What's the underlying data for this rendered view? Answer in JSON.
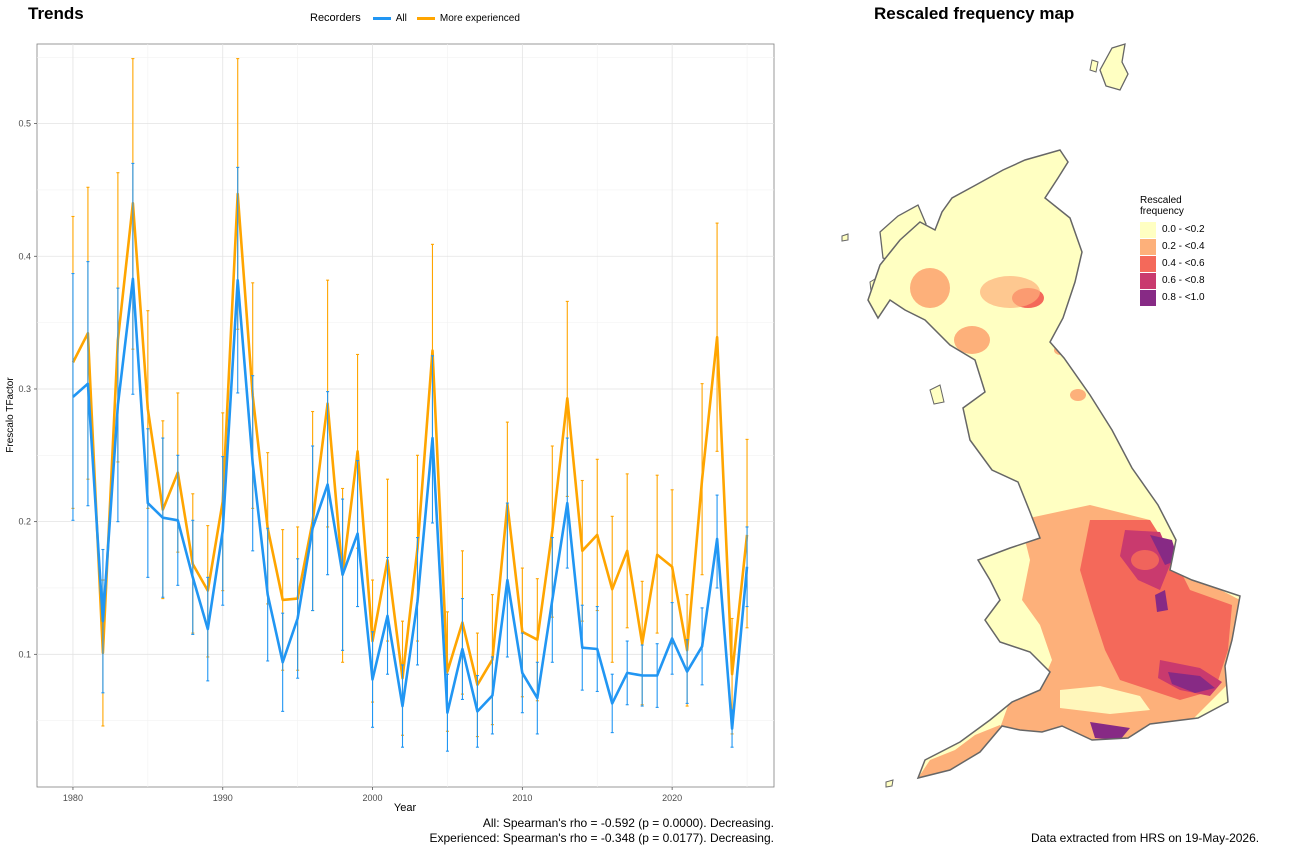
{
  "left_panel": {
    "title": "Trends"
  },
  "right_panel": {
    "title": "Rescaled frequency map"
  },
  "legend": {
    "title": "Recorders",
    "items": [
      {
        "label": "All",
        "color": "#2196F3"
      },
      {
        "label": "More experienced",
        "color": "#FFA500"
      }
    ]
  },
  "map_legend": {
    "title_line1": "Rescaled",
    "title_line2": "frequency",
    "items": [
      {
        "label": "0.0 - <0.2",
        "color": "#FFFFC2"
      },
      {
        "label": "0.2 - <0.4",
        "color": "#FDB07A"
      },
      {
        "label": "0.4 - <0.6",
        "color": "#F4695A"
      },
      {
        "label": "0.6 - <0.8",
        "color": "#C93A6E"
      },
      {
        "label": "0.8 - <1.0",
        "color": "#872A85"
      }
    ]
  },
  "stats": {
    "line1": "All: Spearman's rho = -0.592 (p = 0.0000). Decreasing.",
    "line2": "Experienced: Spearman's rho = -0.348 (p = 0.0177). Decreasing."
  },
  "footer": {
    "extracted": "Data extracted from HRS on 19-May-2026."
  },
  "chart_data": {
    "type": "line",
    "xlabel": "Year",
    "ylabel": "Frescalo TFactor",
    "xlim": [
      1977.6,
      2026.8
    ],
    "ylim": [
      0.0,
      0.56
    ],
    "xticks": [
      1980,
      1990,
      2000,
      2010,
      2020
    ],
    "yticks": [
      0.1,
      0.2,
      0.3,
      0.4,
      0.5
    ],
    "grid": true,
    "legend_position": "top",
    "series": [
      {
        "name": "All",
        "color": "#2196F3",
        "x": [
          1980,
          1981,
          1982,
          1983,
          1984,
          1985,
          1986,
          1987,
          1988,
          1989,
          1990,
          1991,
          1992,
          1993,
          1994,
          1995,
          1996,
          1997,
          1998,
          1999,
          2000,
          2001,
          2002,
          2003,
          2004,
          2005,
          2006,
          2007,
          2008,
          2009,
          2010,
          2011,
          2012,
          2013,
          2014,
          2015,
          2016,
          2017,
          2018,
          2019,
          2020,
          2021,
          2022,
          2023,
          2024,
          2025
        ],
        "y": [
          0.294,
          0.304,
          0.125,
          0.288,
          0.383,
          0.214,
          0.203,
          0.201,
          0.158,
          0.119,
          0.193,
          0.382,
          0.244,
          0.145,
          0.094,
          0.127,
          0.195,
          0.228,
          0.16,
          0.191,
          0.081,
          0.129,
          0.061,
          0.14,
          0.263,
          0.056,
          0.104,
          0.057,
          0.069,
          0.156,
          0.086,
          0.067,
          0.141,
          0.214,
          0.105,
          0.104,
          0.063,
          0.086,
          0.084,
          0.084,
          0.112,
          0.087,
          0.106,
          0.187,
          0.044,
          0.166
        ],
        "lower": [
          0.201,
          0.212,
          0.071,
          0.2,
          0.296,
          0.158,
          0.143,
          0.152,
          0.115,
          0.08,
          0.137,
          0.297,
          0.178,
          0.095,
          0.057,
          0.082,
          0.133,
          0.16,
          0.103,
          0.136,
          0.045,
          0.085,
          0.03,
          0.092,
          0.199,
          0.027,
          0.066,
          0.03,
          0.04,
          0.098,
          0.056,
          0.04,
          0.094,
          0.165,
          0.073,
          0.072,
          0.041,
          0.062,
          0.061,
          0.06,
          0.085,
          0.063,
          0.077,
          0.15,
          0.03,
          0.136
        ],
        "upper": [
          0.387,
          0.396,
          0.179,
          0.376,
          0.47,
          0.27,
          0.263,
          0.25,
          0.201,
          0.158,
          0.249,
          0.467,
          0.31,
          0.195,
          0.131,
          0.172,
          0.257,
          0.298,
          0.217,
          0.246,
          0.117,
          0.173,
          0.092,
          0.188,
          0.325,
          0.085,
          0.142,
          0.084,
          0.098,
          0.214,
          0.116,
          0.094,
          0.188,
          0.263,
          0.137,
          0.136,
          0.085,
          0.11,
          0.107,
          0.108,
          0.139,
          0.111,
          0.135,
          0.22,
          0.058,
          0.196
        ]
      },
      {
        "name": "More experienced",
        "color": "#FFA500",
        "x": [
          1980,
          1981,
          1982,
          1983,
          1984,
          1985,
          1986,
          1987,
          1988,
          1989,
          1990,
          1991,
          1992,
          1993,
          1994,
          1995,
          1996,
          1997,
          1998,
          1999,
          2000,
          2001,
          2002,
          2003,
          2004,
          2005,
          2006,
          2007,
          2008,
          2009,
          2010,
          2011,
          2012,
          2013,
          2014,
          2015,
          2016,
          2017,
          2018,
          2019,
          2020,
          2021,
          2022,
          2023,
          2024,
          2025
        ],
        "y": [
          0.32,
          0.342,
          0.101,
          0.337,
          0.44,
          0.285,
          0.209,
          0.237,
          0.168,
          0.148,
          0.215,
          0.447,
          0.295,
          0.195,
          0.141,
          0.142,
          0.2,
          0.289,
          0.16,
          0.253,
          0.11,
          0.171,
          0.082,
          0.18,
          0.329,
          0.087,
          0.124,
          0.077,
          0.096,
          0.213,
          0.117,
          0.111,
          0.193,
          0.293,
          0.178,
          0.19,
          0.149,
          0.178,
          0.108,
          0.175,
          0.166,
          0.103,
          0.232,
          0.339,
          0.085,
          0.19
        ],
        "lower": [
          0.21,
          0.232,
          0.046,
          0.245,
          0.33,
          0.21,
          0.142,
          0.177,
          0.116,
          0.098,
          0.148,
          0.345,
          0.21,
          0.138,
          0.088,
          0.088,
          0.133,
          0.196,
          0.094,
          0.18,
          0.064,
          0.11,
          0.039,
          0.11,
          0.249,
          0.042,
          0.07,
          0.038,
          0.047,
          0.15,
          0.068,
          0.065,
          0.128,
          0.219,
          0.125,
          0.133,
          0.094,
          0.12,
          0.062,
          0.116,
          0.108,
          0.061,
          0.16,
          0.253,
          0.04,
          0.12
        ],
        "upper": [
          0.43,
          0.452,
          0.156,
          0.463,
          0.549,
          0.359,
          0.276,
          0.297,
          0.221,
          0.197,
          0.282,
          0.549,
          0.38,
          0.252,
          0.194,
          0.196,
          0.283,
          0.382,
          0.225,
          0.326,
          0.156,
          0.232,
          0.125,
          0.25,
          0.409,
          0.132,
          0.178,
          0.116,
          0.145,
          0.275,
          0.165,
          0.157,
          0.257,
          0.366,
          0.231,
          0.247,
          0.204,
          0.236,
          0.155,
          0.235,
          0.224,
          0.145,
          0.304,
          0.425,
          0.127,
          0.262
        ]
      }
    ]
  }
}
